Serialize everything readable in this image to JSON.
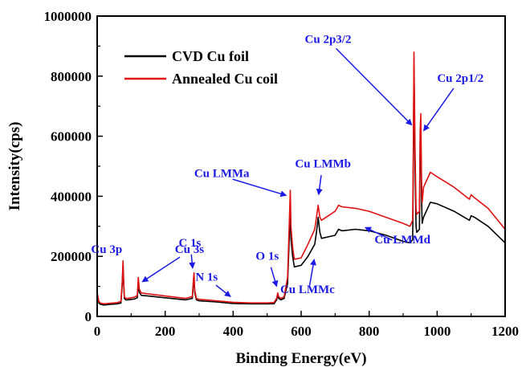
{
  "chart_data": {
    "type": "line",
    "title": "",
    "xlabel": "Binding Energy(eV)",
    "ylabel": "Intensity(cps)",
    "xlim": [
      0,
      1200
    ],
    "ylim": [
      0,
      1000000
    ],
    "x_ticks": [
      "0",
      "200",
      "400",
      "600",
      "800",
      "1000",
      "1200"
    ],
    "y_ticks": [
      "0",
      "200000",
      "400000",
      "600000",
      "800000",
      "1000000"
    ],
    "grid": false,
    "legend_position": "top-left",
    "annotation_color": "#1a1ae6",
    "series": [
      {
        "name": "CVD Cu foil",
        "color": "#000000",
        "x": [
          0,
          5,
          10,
          20,
          40,
          60,
          70,
          74,
          76,
          78,
          80,
          84,
          90,
          110,
          118,
          121,
          124,
          130,
          150,
          200,
          260,
          280,
          283,
          285,
          287,
          292,
          300,
          350,
          400,
          450,
          500,
          520,
          528,
          531,
          534,
          540,
          550,
          560,
          565,
          568,
          570,
          575,
          580,
          600,
          620,
          640,
          645,
          650,
          655,
          660,
          700,
          710,
          720,
          760,
          800,
          850,
          900,
          920,
          928,
          930,
          932,
          935,
          938,
          940,
          948,
          950,
          952,
          954,
          956,
          960,
          980,
          1000,
          1050,
          1095,
          1100,
          1110,
          1150,
          1200
        ],
        "y": [
          70000,
          45000,
          40000,
          38000,
          40000,
          42000,
          45000,
          110000,
          170000,
          110000,
          60000,
          55000,
          55000,
          58000,
          62000,
          115000,
          80000,
          70000,
          68000,
          62000,
          55000,
          60000,
          110000,
          130000,
          80000,
          55000,
          52000,
          48000,
          43000,
          42000,
          42000,
          42000,
          55000,
          70000,
          60000,
          55000,
          60000,
          110000,
          260000,
          370000,
          260000,
          200000,
          165000,
          170000,
          200000,
          240000,
          280000,
          330000,
          280000,
          260000,
          270000,
          290000,
          285000,
          290000,
          285000,
          270000,
          250000,
          245000,
          255000,
          500000,
          830000,
          500000,
          300000,
          280000,
          290000,
          580000,
          620000,
          400000,
          310000,
          330000,
          380000,
          375000,
          350000,
          320000,
          335000,
          330000,
          300000,
          245000
        ]
      },
      {
        "name": "Annealed Cu coil",
        "color": "#e01010",
        "x": [
          0,
          5,
          10,
          20,
          40,
          60,
          70,
          74,
          76,
          78,
          80,
          84,
          90,
          110,
          118,
          121,
          124,
          130,
          150,
          200,
          260,
          280,
          283,
          285,
          287,
          292,
          300,
          350,
          400,
          450,
          500,
          520,
          528,
          531,
          534,
          540,
          550,
          560,
          565,
          568,
          570,
          575,
          580,
          600,
          620,
          640,
          645,
          650,
          655,
          660,
          700,
          710,
          720,
          760,
          800,
          850,
          900,
          920,
          928,
          930,
          932,
          935,
          938,
          940,
          948,
          950,
          952,
          954,
          956,
          960,
          980,
          1000,
          1050,
          1095,
          1100,
          1110,
          1150,
          1200
        ],
        "y": [
          80000,
          50000,
          44000,
          42000,
          44000,
          46000,
          50000,
          120000,
          185000,
          120000,
          65000,
          60000,
          60000,
          64000,
          70000,
          130000,
          90000,
          78000,
          75000,
          68000,
          60000,
          66000,
          120000,
          145000,
          88000,
          60000,
          57000,
          52000,
          47000,
          45000,
          45000,
          46000,
          60000,
          78000,
          66000,
          60000,
          65000,
          130000,
          310000,
          420000,
          300000,
          230000,
          190000,
          195000,
          240000,
          290000,
          330000,
          370000,
          330000,
          320000,
          350000,
          370000,
          365000,
          360000,
          350000,
          330000,
          310000,
          300000,
          320000,
          560000,
          880000,
          560000,
          360000,
          340000,
          350000,
          620000,
          675000,
          460000,
          380000,
          430000,
          480000,
          465000,
          430000,
          390000,
          405000,
          395000,
          360000,
          290000
        ]
      }
    ],
    "annotations": [
      {
        "label": "Cu 3p",
        "x": 75,
        "y": 185000
      },
      {
        "label": "Cu 3s",
        "x": 125,
        "y": 110000
      },
      {
        "label": "C 1s",
        "x": 282,
        "y": 150000
      },
      {
        "label": "N 1s",
        "x": 400,
        "y": 60000
      },
      {
        "label": "O 1s",
        "x": 531,
        "y": 90000
      },
      {
        "label": "Cu LMMa",
        "x": 565,
        "y": 400000
      },
      {
        "label": "Cu LMMb",
        "x": 650,
        "y": 395000
      },
      {
        "label": "Cu LMMc",
        "x": 640,
        "y": 200000
      },
      {
        "label": "Cu LMMd",
        "x": 780,
        "y": 300000
      },
      {
        "label": "Cu 2p3/2",
        "x": 932,
        "y": 630000
      },
      {
        "label": "Cu 2p1/2",
        "x": 955,
        "y": 610000
      }
    ]
  }
}
